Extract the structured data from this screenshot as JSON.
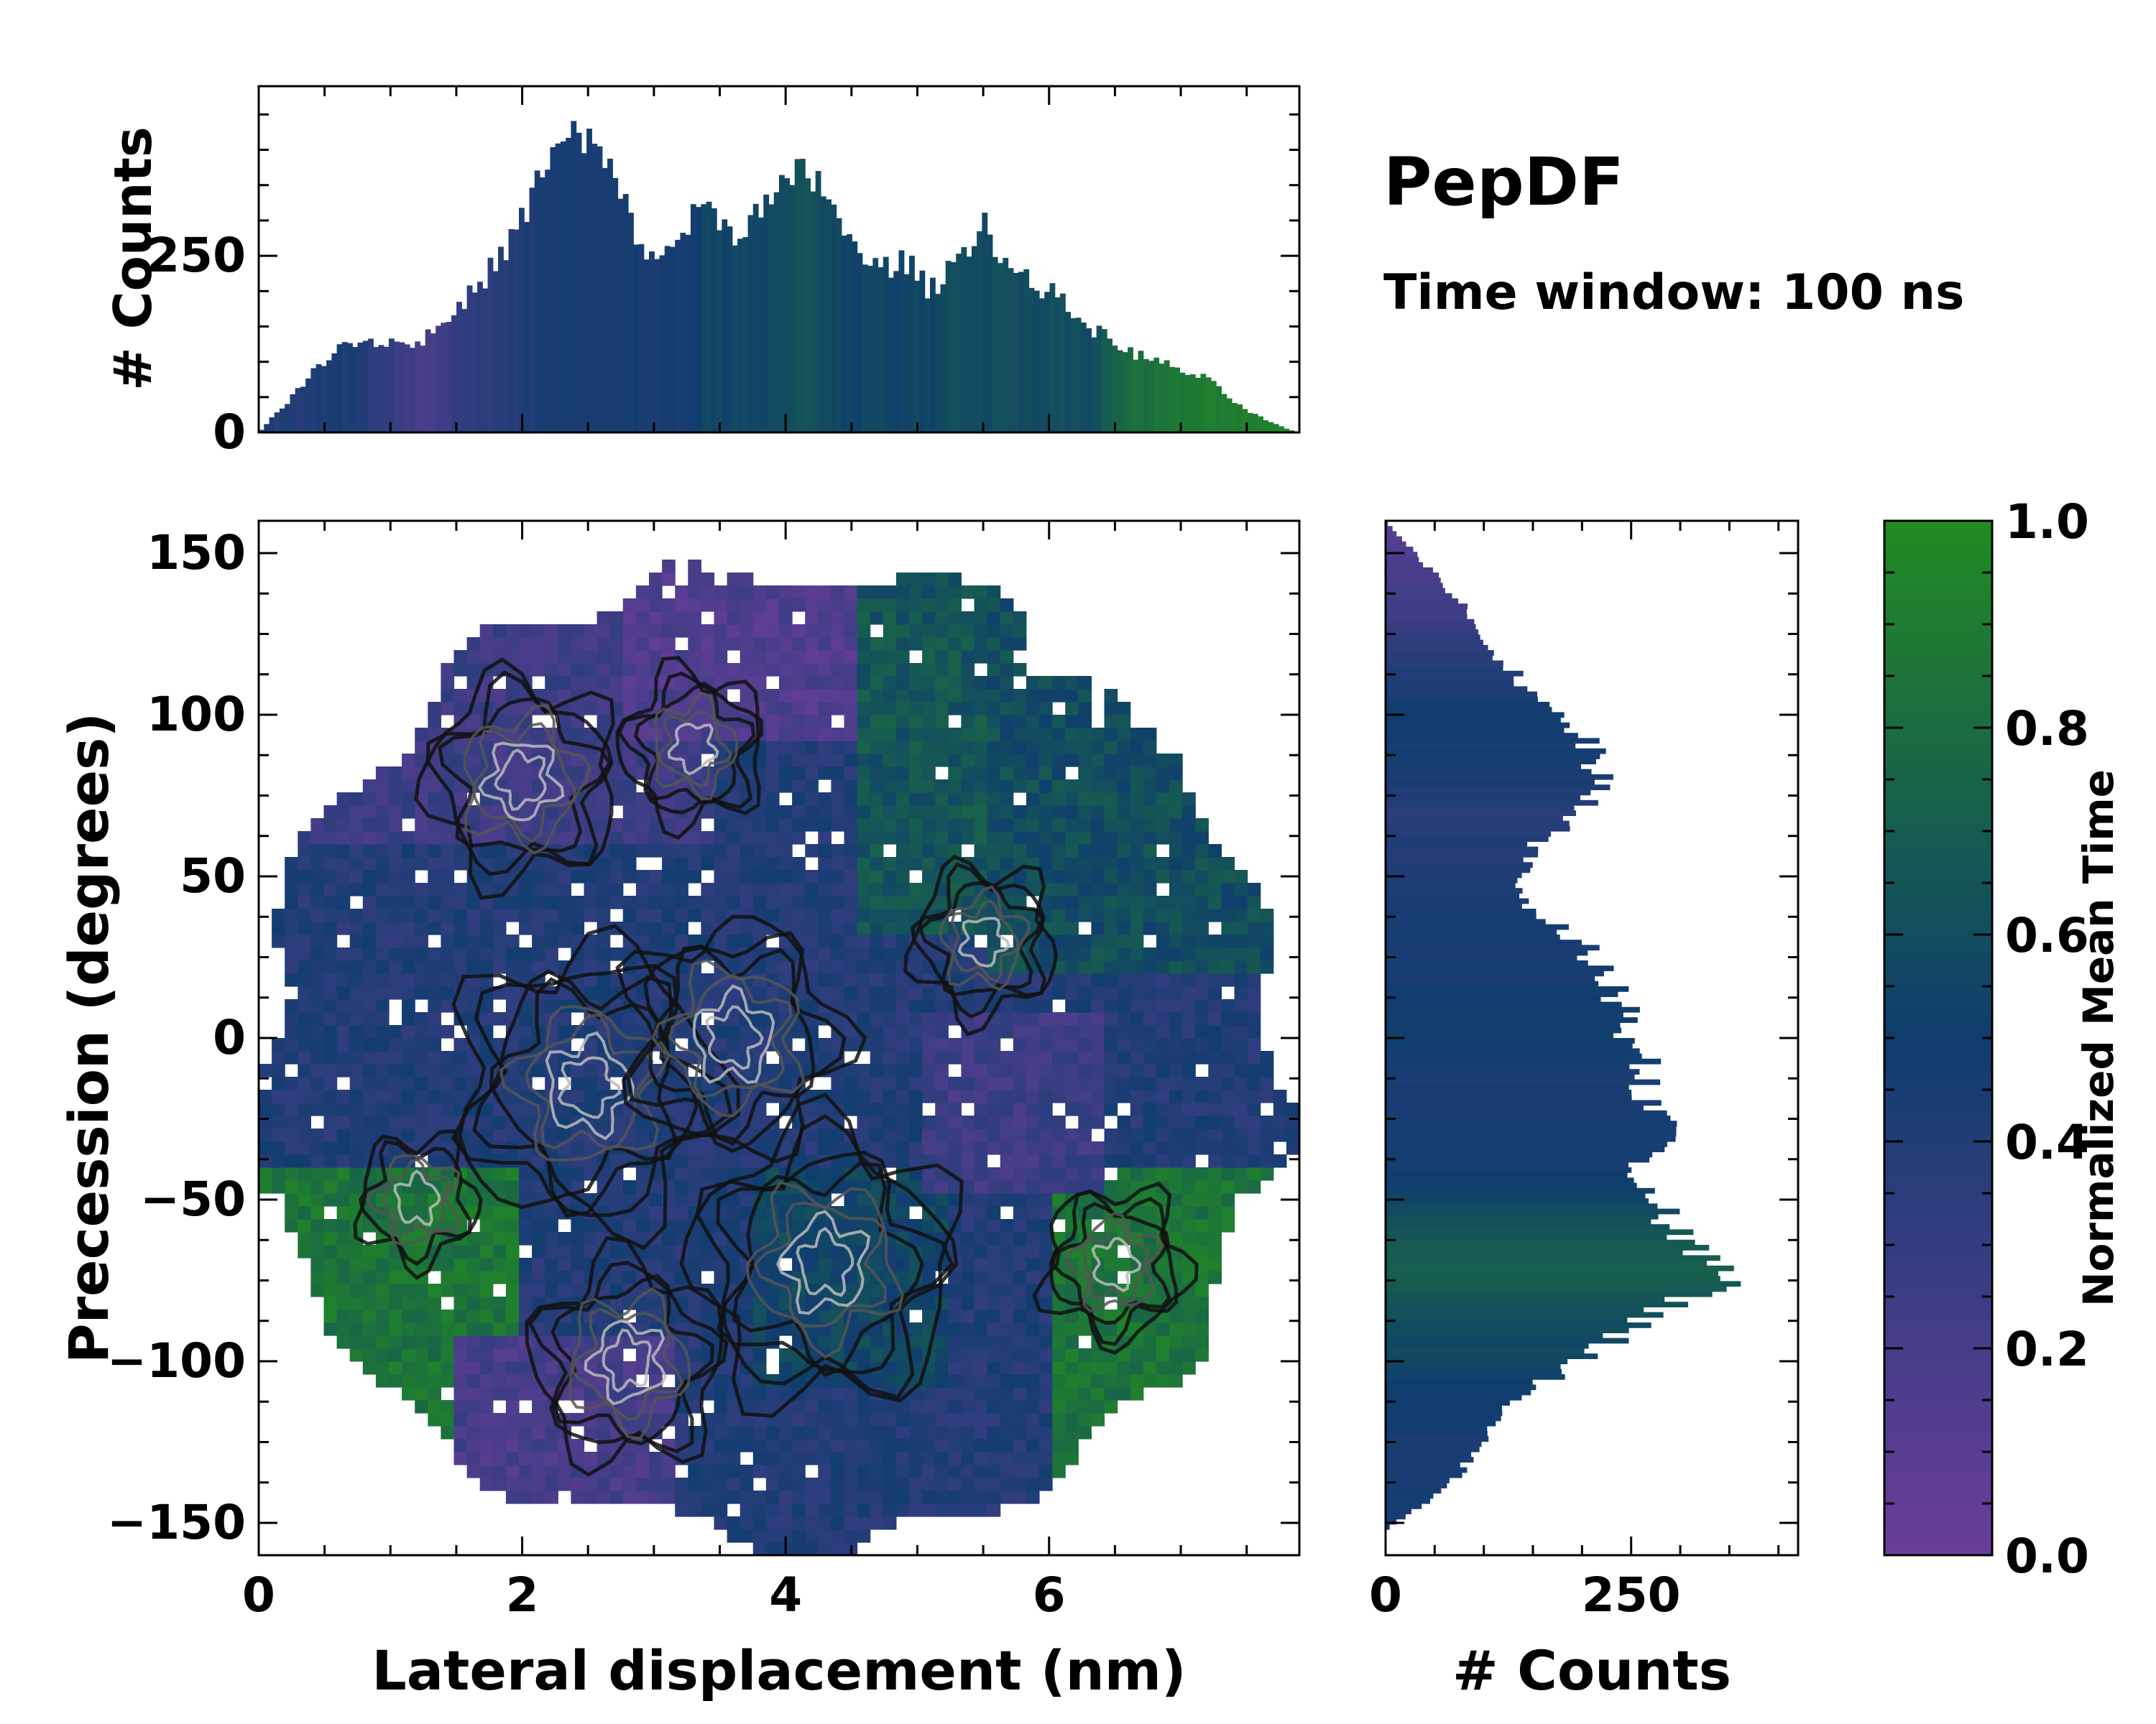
{
  "chart_data": {
    "type": "heatmap",
    "title": "PepDF",
    "subtitle": "Time window: 100 ns",
    "colors": {
      "purple": "#6a3d9a",
      "navy": "#0f3d6e",
      "green": "#228b22",
      "contour_dark": "#111111",
      "contour_mid": "#555555",
      "contour_light": "#bbbbbb"
    },
    "main": {
      "xlabel": "Lateral displacement (nm)",
      "ylabel": "Precession (degrees)",
      "xlim": [
        0,
        7.9
      ],
      "ylim": [
        -160,
        160
      ],
      "xticks": [
        0,
        2,
        4,
        6
      ],
      "yticks": [
        -150,
        -100,
        -50,
        0,
        50,
        100,
        150
      ],
      "clusters": [
        {
          "x": 2.5,
          "y": -15,
          "weight": 1.0
        },
        {
          "x": 3.6,
          "y": 0,
          "weight": 0.8
        },
        {
          "x": 4.3,
          "y": -70,
          "weight": 1.0
        },
        {
          "x": 2.8,
          "y": -100,
          "weight": 0.7
        },
        {
          "x": 2.0,
          "y": 80,
          "weight": 0.7
        },
        {
          "x": 3.3,
          "y": 90,
          "weight": 0.5
        },
        {
          "x": 5.5,
          "y": 30,
          "weight": 0.5
        },
        {
          "x": 6.5,
          "y": -70,
          "weight": 0.5
        },
        {
          "x": 1.2,
          "y": -50,
          "weight": 0.4
        }
      ]
    },
    "top_histogram": {
      "ylabel": "# Counts",
      "yticks": [
        0,
        250
      ],
      "ylim": [
        0,
        490
      ],
      "x_start": 0,
      "x_end": 7.9,
      "keypoints_x": [
        0,
        0.3,
        0.6,
        0.9,
        1.2,
        1.5,
        1.8,
        2.0,
        2.2,
        2.4,
        2.6,
        2.8,
        3.0,
        3.2,
        3.4,
        3.6,
        3.9,
        4.1,
        4.3,
        4.5,
        4.7,
        4.9,
        5.1,
        5.3,
        5.5,
        5.7,
        6.0,
        6.3,
        6.6,
        6.9,
        7.2,
        7.5,
        7.8,
        7.9
      ],
      "keypoints_counts": [
        0,
        60,
        125,
        130,
        125,
        170,
        240,
        300,
        390,
        420,
        395,
        310,
        235,
        285,
        320,
        285,
        325,
        365,
        350,
        260,
        230,
        245,
        200,
        245,
        300,
        230,
        200,
        150,
        115,
        95,
        75,
        30,
        5,
        0
      ],
      "keypoints_time": [
        0.4,
        0.4,
        0.45,
        0.35,
        0.2,
        0.3,
        0.35,
        0.4,
        0.45,
        0.45,
        0.45,
        0.45,
        0.45,
        0.45,
        0.55,
        0.55,
        0.55,
        0.65,
        0.6,
        0.55,
        0.55,
        0.55,
        0.55,
        0.6,
        0.6,
        0.6,
        0.6,
        0.6,
        0.8,
        0.85,
        0.9,
        0.92,
        0.95,
        0.95
      ]
    },
    "right_histogram": {
      "xlabel": "# Counts",
      "xticks": [
        0,
        250
      ],
      "xlim": [
        0,
        420
      ],
      "y_start": -160,
      "y_end": 160,
      "keypoints_y": [
        -152,
        -140,
        -125,
        -110,
        -100,
        -90,
        -80,
        -75,
        -70,
        -60,
        -50,
        -40,
        -30,
        -20,
        -10,
        0,
        10,
        20,
        30,
        40,
        50,
        60,
        70,
        80,
        90,
        100,
        110,
        120,
        130,
        140,
        150,
        160
      ],
      "keypoints_counts": [
        0,
        60,
        100,
        140,
        200,
        250,
        300,
        370,
        330,
        300,
        280,
        260,
        300,
        260,
        270,
        240,
        240,
        220,
        200,
        140,
        140,
        150,
        200,
        220,
        210,
        175,
        140,
        110,
        90,
        60,
        30,
        0
      ],
      "keypoints_time": [
        0.45,
        0.45,
        0.45,
        0.5,
        0.55,
        0.6,
        0.65,
        0.7,
        0.7,
        0.65,
        0.55,
        0.45,
        0.45,
        0.45,
        0.45,
        0.5,
        0.5,
        0.45,
        0.45,
        0.45,
        0.4,
        0.4,
        0.35,
        0.45,
        0.45,
        0.5,
        0.4,
        0.35,
        0.25,
        0.2,
        0.15,
        0.1
      ]
    },
    "colorbar": {
      "label": "Normalized Mean Time",
      "ticks": [
        0.0,
        0.2,
        0.4,
        0.6,
        0.8,
        1.0
      ],
      "tick_labels": [
        "0.0",
        "0.2",
        "0.4",
        "0.6",
        "0.8",
        "1.0"
      ],
      "range": [
        0,
        1
      ]
    }
  }
}
